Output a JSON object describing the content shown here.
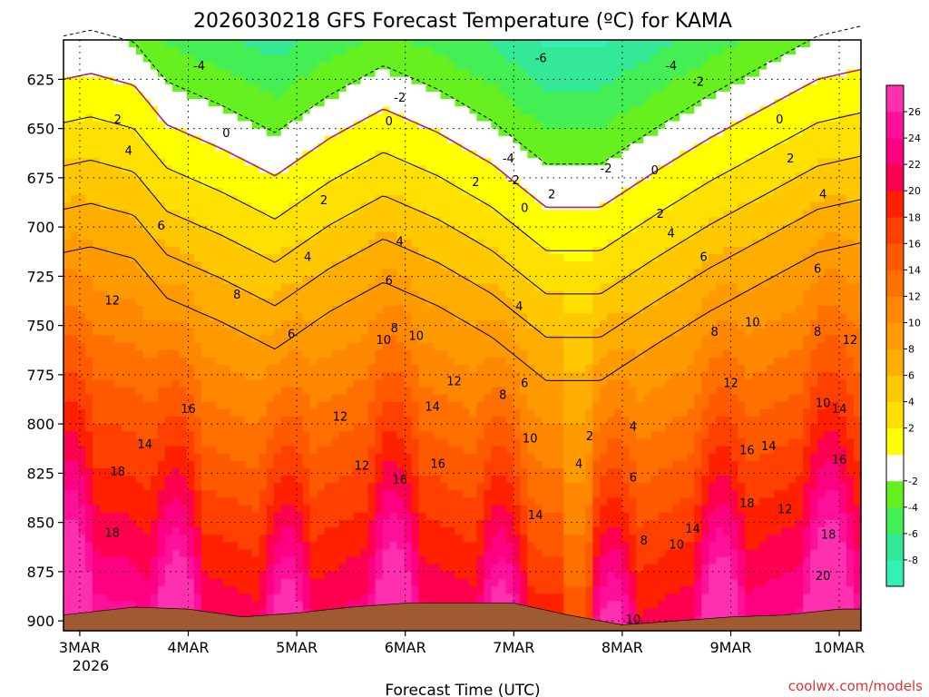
{
  "chart_data": {
    "type": "heatmap",
    "title": "2026030218 GFS Forecast Temperature (ºC) for KAMA",
    "xlabel": "Forecast Time (UTC)",
    "ylabel": "",
    "x_ticks": [
      "3MAR",
      "4MAR",
      "5MAR",
      "6MAR",
      "7MAR",
      "8MAR",
      "9MAR",
      "10MAR"
    ],
    "x_year_label": "2026",
    "xlim_days": [
      2.85,
      10.2
    ],
    "y_ticks": [
      625,
      650,
      675,
      700,
      725,
      750,
      775,
      800,
      825,
      850,
      875,
      900
    ],
    "ylim_hpa": [
      605,
      905
    ],
    "pressure_unit": "hPa",
    "colorbar": {
      "levels": [
        -10,
        -8,
        -6,
        -4,
        -2,
        0,
        2,
        4,
        6,
        8,
        10,
        12,
        14,
        16,
        18,
        20,
        22,
        24,
        26,
        28
      ],
      "tick_labels": [
        "26",
        "24",
        "22",
        "20",
        "18",
        "16",
        "14",
        "12",
        "10",
        "8",
        "6",
        "4",
        "2",
        "-2",
        "-4",
        "-6",
        "-8"
      ],
      "tick_values": [
        26,
        24,
        22,
        20,
        18,
        16,
        14,
        12,
        10,
        8,
        6,
        4,
        2,
        -2,
        -4,
        -6,
        -8
      ],
      "colors": [
        "#33f0b4",
        "#33e896",
        "#44ee55",
        "#66f020",
        "#ffffff",
        "#ffff00",
        "#ffe000",
        "#ffc800",
        "#ffad00",
        "#ff9a00",
        "#ff8800",
        "#ff7000",
        "#ff5a00",
        "#ff4000",
        "#ff2000",
        "#ff0050",
        "#ff0080",
        "#ff109a",
        "#ff30b0"
      ]
    },
    "zero_isotherm_profile": [
      {
        "day": 2.85,
        "p": 625
      },
      {
        "day": 3.1,
        "p": 622
      },
      {
        "day": 3.5,
        "p": 628
      },
      {
        "day": 3.8,
        "p": 648
      },
      {
        "day": 4.3,
        "p": 660
      },
      {
        "day": 4.8,
        "p": 674
      },
      {
        "day": 5.3,
        "p": 655
      },
      {
        "day": 5.8,
        "p": 640
      },
      {
        "day": 6.3,
        "p": 652
      },
      {
        "day": 6.8,
        "p": 668
      },
      {
        "day": 7.3,
        "p": 690
      },
      {
        "day": 7.8,
        "p": 690
      },
      {
        "day": 8.3,
        "p": 672
      },
      {
        "day": 8.8,
        "p": 655
      },
      {
        "day": 9.3,
        "p": 640
      },
      {
        "day": 9.8,
        "p": 625
      },
      {
        "day": 10.2,
        "p": 620
      }
    ],
    "surface_profile": [
      {
        "day": 2.85,
        "p": 897
      },
      {
        "day": 3.5,
        "p": 893
      },
      {
        "day": 4.0,
        "p": 894
      },
      {
        "day": 4.5,
        "p": 898
      },
      {
        "day": 5.0,
        "p": 896
      },
      {
        "day": 5.5,
        "p": 893
      },
      {
        "day": 6.0,
        "p": 891
      },
      {
        "day": 6.5,
        "p": 891
      },
      {
        "day": 7.0,
        "p": 891
      },
      {
        "day": 7.5,
        "p": 897
      },
      {
        "day": 8.0,
        "p": 902
      },
      {
        "day": 8.5,
        "p": 900
      },
      {
        "day": 9.0,
        "p": 898
      },
      {
        "day": 9.5,
        "p": 897
      },
      {
        "day": 10.0,
        "p": 894
      },
      {
        "day": 10.2,
        "p": 894
      }
    ],
    "contour_labels": [
      {
        "text": "-6",
        "day": 7.25,
        "p": 614
      },
      {
        "text": "-4",
        "day": 4.1,
        "p": 618
      },
      {
        "text": "-4",
        "day": 8.45,
        "p": 618
      },
      {
        "text": "-4",
        "day": 6.95,
        "p": 665
      },
      {
        "text": "-2",
        "day": 5.95,
        "p": 634
      },
      {
        "text": "-2",
        "day": 8.7,
        "p": 626
      },
      {
        "text": "-2",
        "day": 7.0,
        "p": 676
      },
      {
        "text": "-2",
        "day": 7.85,
        "p": 670
      },
      {
        "text": "2",
        "day": 3.35,
        "p": 645
      },
      {
        "text": "0",
        "day": 4.35,
        "p": 652
      },
      {
        "text": "0",
        "day": 5.85,
        "p": 646
      },
      {
        "text": "0",
        "day": 7.1,
        "p": 690
      },
      {
        "text": "2",
        "day": 7.35,
        "p": 683
      },
      {
        "text": "2",
        "day": 6.65,
        "p": 677
      },
      {
        "text": "0",
        "day": 8.3,
        "p": 671
      },
      {
        "text": "0",
        "day": 9.45,
        "p": 645
      },
      {
        "text": "2",
        "day": 5.25,
        "p": 686
      },
      {
        "text": "2",
        "day": 8.35,
        "p": 693
      },
      {
        "text": "2",
        "day": 9.55,
        "p": 665
      },
      {
        "text": "4",
        "day": 3.45,
        "p": 661
      },
      {
        "text": "4",
        "day": 5.1,
        "p": 715
      },
      {
        "text": "4",
        "day": 5.95,
        "p": 707
      },
      {
        "text": "4",
        "day": 7.05,
        "p": 740
      },
      {
        "text": "4",
        "day": 8.45,
        "p": 703
      },
      {
        "text": "4",
        "day": 9.85,
        "p": 683
      },
      {
        "text": "4",
        "day": 8.1,
        "p": 801
      },
      {
        "text": "4",
        "day": 7.6,
        "p": 820
      },
      {
        "text": "2",
        "day": 7.7,
        "p": 806
      },
      {
        "text": "6",
        "day": 3.75,
        "p": 699
      },
      {
        "text": "6",
        "day": 4.95,
        "p": 754
      },
      {
        "text": "6",
        "day": 5.85,
        "p": 727
      },
      {
        "text": "6",
        "day": 7.1,
        "p": 779
      },
      {
        "text": "6",
        "day": 8.75,
        "p": 715
      },
      {
        "text": "6",
        "day": 9.8,
        "p": 721
      },
      {
        "text": "6",
        "day": 8.1,
        "p": 827
      },
      {
        "text": "8",
        "day": 4.45,
        "p": 734
      },
      {
        "text": "8",
        "day": 5.9,
        "p": 751
      },
      {
        "text": "8",
        "day": 6.9,
        "p": 785
      },
      {
        "text": "8",
        "day": 8.85,
        "p": 753
      },
      {
        "text": "8",
        "day": 9.8,
        "p": 753
      },
      {
        "text": "8",
        "day": 8.2,
        "p": 859
      },
      {
        "text": "10",
        "day": 5.8,
        "p": 757
      },
      {
        "text": "10",
        "day": 6.1,
        "p": 755
      },
      {
        "text": "10",
        "day": 9.2,
        "p": 748
      },
      {
        "text": "10",
        "day": 9.85,
        "p": 789
      },
      {
        "text": "10",
        "day": 7.15,
        "p": 807
      },
      {
        "text": "10",
        "day": 8.5,
        "p": 861
      },
      {
        "text": "10",
        "day": 8.1,
        "p": 899
      },
      {
        "text": "12",
        "day": 3.3,
        "p": 737
      },
      {
        "text": "12",
        "day": 5.4,
        "p": 796
      },
      {
        "text": "12",
        "day": 6.45,
        "p": 778
      },
      {
        "text": "12",
        "day": 5.6,
        "p": 821
      },
      {
        "text": "12",
        "day": 9.0,
        "p": 779
      },
      {
        "text": "12",
        "day": 10.1,
        "p": 757
      },
      {
        "text": "12",
        "day": 9.5,
        "p": 843
      },
      {
        "text": "14",
        "day": 3.6,
        "p": 810
      },
      {
        "text": "14",
        "day": 6.25,
        "p": 791
      },
      {
        "text": "14",
        "day": 7.2,
        "p": 846
      },
      {
        "text": "14",
        "day": 9.35,
        "p": 811
      },
      {
        "text": "14",
        "day": 10.0,
        "p": 792
      },
      {
        "text": "14",
        "day": 8.65,
        "p": 853
      },
      {
        "text": "16",
        "day": 4.0,
        "p": 792
      },
      {
        "text": "16",
        "day": 6.3,
        "p": 820
      },
      {
        "text": "16",
        "day": 5.95,
        "p": 828
      },
      {
        "text": "16",
        "day": 9.15,
        "p": 813
      },
      {
        "text": "16",
        "day": 10.0,
        "p": 818
      },
      {
        "text": "18",
        "day": 3.35,
        "p": 824
      },
      {
        "text": "18",
        "day": 3.3,
        "p": 855
      },
      {
        "text": "18",
        "day": 9.15,
        "p": 840
      },
      {
        "text": "18",
        "day": 9.9,
        "p": 856
      },
      {
        "text": "20",
        "day": 9.85,
        "p": 877
      }
    ]
  },
  "watermark": "coolwx.com/models"
}
